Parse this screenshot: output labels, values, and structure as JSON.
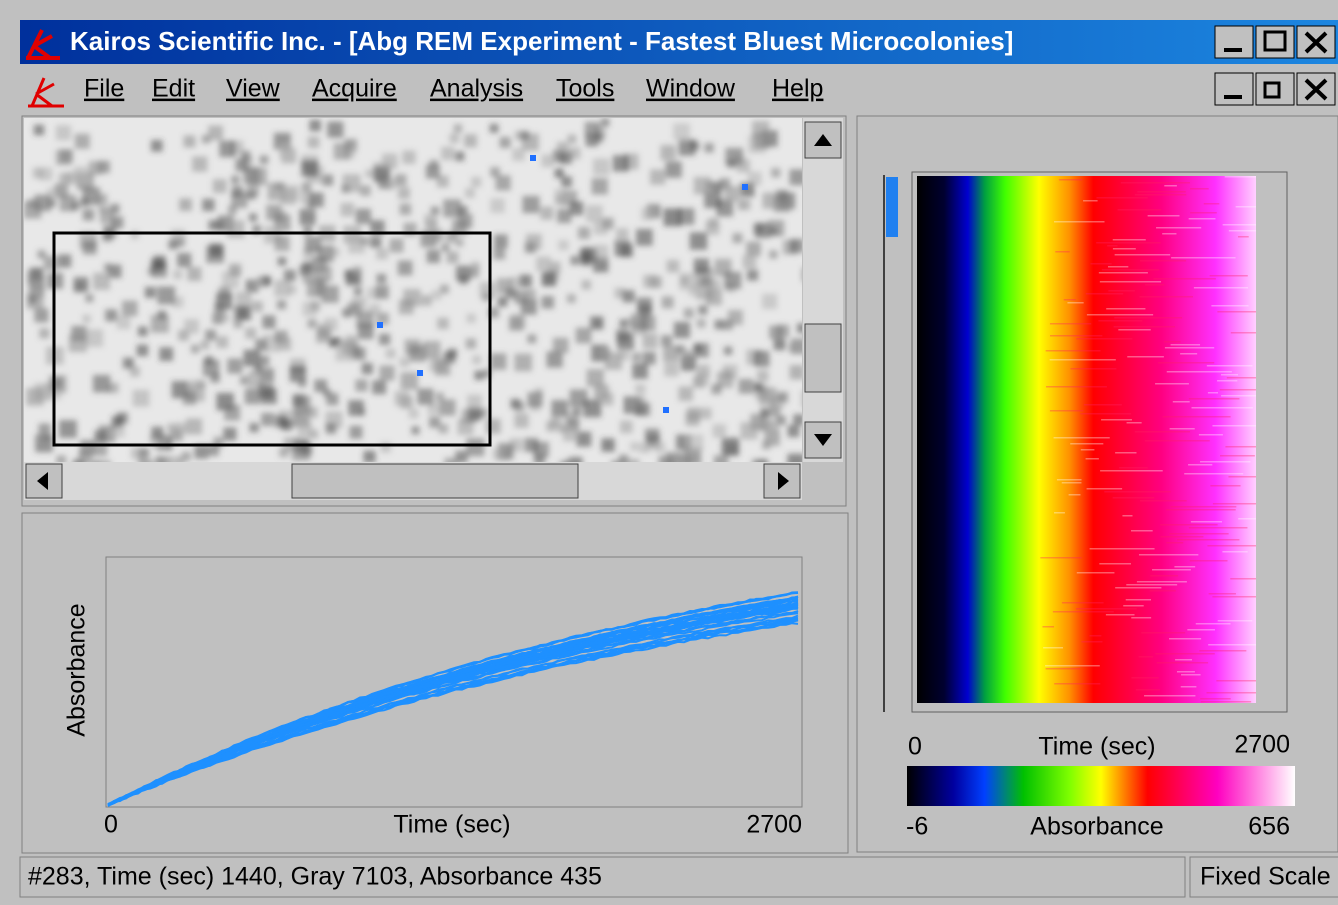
{
  "window": {
    "title": "Kairos Scientific Inc. - [Abg REM Experiment - Fastest Bluest Microcolonies]"
  },
  "menu": [
    "File",
    "Edit",
    "View",
    "Acquire",
    "Analysis",
    "Tools",
    "Window",
    "Help"
  ],
  "kinetics_plot": {
    "y_label": "Absorbance",
    "x_min": "0",
    "x_label": "Time (sec)",
    "x_max": "2700"
  },
  "heatmap": {
    "x_min": "0",
    "x_label": "Time (sec)",
    "x_max": "2700",
    "colorbar": {
      "min": "-6",
      "label": "Absorbance",
      "max": "656"
    }
  },
  "status": {
    "info": "#283, Time (sec) 1440, Gray 7103, Absorbance 435",
    "mode": "Fixed Scale"
  }
}
